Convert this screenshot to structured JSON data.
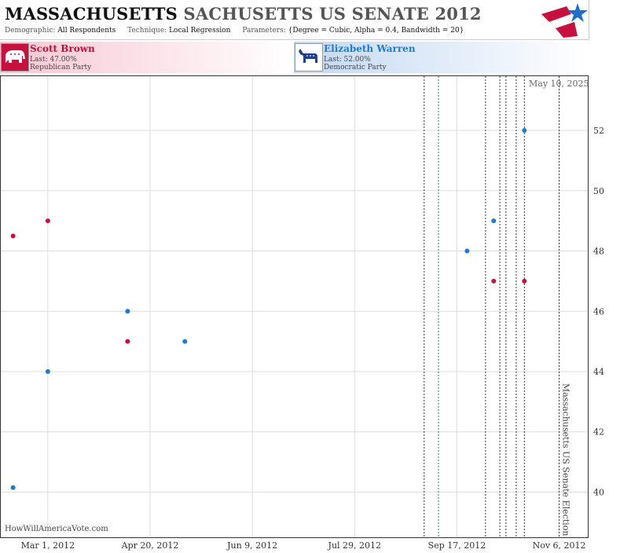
{
  "header": {
    "title_part1": "MASSACHUSETTS",
    "title_part2": "SACHUSETTS US SENATE 2012",
    "demographic_label": "Demographic:",
    "demographic_value": "All Respondents",
    "technique_label": "Technique:",
    "technique_value": "Local Regression",
    "parameters_label": "Parameters:",
    "parameters_value": "{Degree = Cubic, Alpha = 0.4, Bandwidth = 20}",
    "logo_icon": "red-white-blue-flag-star-icon"
  },
  "candidates": [
    {
      "name": "Scott Brown",
      "last": "Last: 47.00%",
      "party": "Republican Party",
      "icon": "elephant-icon",
      "color": "#c8103e"
    },
    {
      "name": "Elizabeth Warren",
      "last": "Last: 52.00%",
      "party": "Democratic Party",
      "icon": "donkey-icon",
      "color": "#1f7ad6"
    }
  ],
  "date_stamp": "May 10, 2025",
  "watermark": "HowWillAmericaVote.com",
  "chart_data": {
    "type": "scatter",
    "x_ticks": [
      "Mar 1, 2012",
      "Apr 20, 2012",
      "Jun 9, 2012",
      "Jul 29, 2012",
      "Sep 17, 2012",
      "Nov 6, 2012"
    ],
    "y_ticks": [
      40,
      42,
      44,
      46,
      48,
      50,
      52
    ],
    "xlim": [
      "2012-02-07",
      "2012-11-20"
    ],
    "ylim": [
      38.5,
      53.8
    ],
    "grid": true,
    "series": [
      {
        "name": "Scott Brown",
        "color": "#c8103e",
        "points": [
          {
            "x": "2012-02-13",
            "y": 48.5
          },
          {
            "x": "2012-03-01",
            "y": 49
          },
          {
            "x": "2012-04-09",
            "y": 45
          },
          {
            "x": "2012-10-05",
            "y": 47
          },
          {
            "x": "2012-10-20",
            "y": 47
          }
        ]
      },
      {
        "name": "Elizabeth Warren",
        "color": "#1f7ad6",
        "points": [
          {
            "x": "2012-02-13",
            "y": 40.15
          },
          {
            "x": "2012-03-01",
            "y": 44
          },
          {
            "x": "2012-04-09",
            "y": 46
          },
          {
            "x": "2012-05-07",
            "y": 45
          },
          {
            "x": "2012-09-22",
            "y": 48
          },
          {
            "x": "2012-10-05",
            "y": 49
          },
          {
            "x": "2012-10-20",
            "y": 52
          }
        ]
      }
    ],
    "event_lines": [
      {
        "x": "2012-09-01",
        "color": "#800080"
      },
      {
        "x": "2012-09-08",
        "color": "#2a7a7a"
      },
      {
        "x": "2012-10-01",
        "color": "#333333"
      },
      {
        "x": "2012-10-08",
        "color": "#333333"
      },
      {
        "x": "2012-10-11",
        "color": "#333333"
      },
      {
        "x": "2012-10-16",
        "color": "#333333"
      },
      {
        "x": "2012-10-20",
        "color": "#333333"
      },
      {
        "x": "2012-11-06",
        "color": "#333333"
      }
    ],
    "annotation": {
      "text": "Massachusetts US Senate Election",
      "x": "2012-11-06"
    }
  }
}
